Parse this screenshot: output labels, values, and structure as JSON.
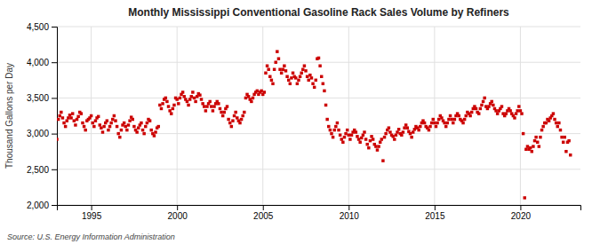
{
  "chart_data": {
    "type": "scatter",
    "title": "Monthly Mississippi Conventional Gasoline Rack Sales Volume by Refiners",
    "ylabel": "Thousand Gallons per Day",
    "source": "Source: U.S. Energy Information Administration",
    "color": "#cc0000",
    "marker": "square",
    "grid": true,
    "xlim": [
      1993.0,
      2023.5
    ],
    "ylim": [
      2000,
      4500
    ],
    "xticks": [
      1995,
      2000,
      2005,
      2010,
      2015,
      2020
    ],
    "yticks": [
      {
        "value": 2000,
        "label": "2,000"
      },
      {
        "value": 2500,
        "label": "2,500"
      },
      {
        "value": 3000,
        "label": "3,000"
      },
      {
        "value": 3500,
        "label": "3,500"
      },
      {
        "value": 4000,
        "label": "4,000"
      },
      {
        "value": 4500,
        "label": "4,500"
      }
    ],
    "x": [
      1993,
      1993.0833333333333,
      1993.1666666666667,
      1993.25,
      1993.3333333333333,
      1993.4166666666667,
      1993.5,
      1993.5833333333333,
      1993.6666666666667,
      1993.75,
      1993.8333333333333,
      1993.9166666666667,
      1994,
      1994.0833333333333,
      1994.1666666666667,
      1994.25,
      1994.3333333333333,
      1994.4166666666667,
      1994.5,
      1994.5833333333333,
      1994.6666666666667,
      1994.75,
      1994.8333333333333,
      1994.9166666666667,
      1995,
      1995.0833333333333,
      1995.1666666666667,
      1995.25,
      1995.3333333333333,
      1995.4166666666667,
      1995.5,
      1995.5833333333333,
      1995.6666666666667,
      1995.75,
      1995.8333333333333,
      1995.9166666666667,
      1996,
      1996.0833333333333,
      1996.1666666666667,
      1996.25,
      1996.3333333333333,
      1996.4166666666667,
      1996.5,
      1996.5833333333333,
      1996.6666666666667,
      1996.75,
      1996.8333333333333,
      1996.9166666666667,
      1997,
      1997.0833333333333,
      1997.1666666666667,
      1997.25,
      1997.3333333333333,
      1997.4166666666667,
      1997.5,
      1997.5833333333333,
      1997.6666666666667,
      1997.75,
      1997.8333333333333,
      1997.9166666666667,
      1998,
      1998.0833333333333,
      1998.1666666666667,
      1998.25,
      1998.3333333333333,
      1998.4166666666667,
      1998.5,
      1998.5833333333333,
      1998.6666666666667,
      1998.75,
      1998.8333333333333,
      1998.9166666666667,
      1999,
      1999.0833333333333,
      1999.1666666666667,
      1999.25,
      1999.3333333333333,
      1999.4166666666667,
      1999.5,
      1999.5833333333333,
      1999.6666666666667,
      1999.75,
      1999.8333333333333,
      1999.9166666666667,
      2000,
      2000.0833333333333,
      2000.1666666666667,
      2000.25,
      2000.3333333333333,
      2000.4166666666667,
      2000.5,
      2000.5833333333333,
      2000.6666666666667,
      2000.75,
      2000.8333333333333,
      2000.9166666666667,
      2001,
      2001.0833333333333,
      2001.1666666666667,
      2001.25,
      2001.3333333333333,
      2001.4166666666667,
      2001.5,
      2001.5833333333333,
      2001.6666666666667,
      2001.75,
      2001.8333333333333,
      2001.9166666666667,
      2002,
      2002.0833333333333,
      2002.1666666666667,
      2002.25,
      2002.3333333333333,
      2002.4166666666667,
      2002.5,
      2002.5833333333333,
      2002.6666666666667,
      2002.75,
      2002.8333333333333,
      2002.9166666666667,
      2003,
      2003.0833333333333,
      2003.1666666666667,
      2003.25,
      2003.3333333333333,
      2003.4166666666667,
      2003.5,
      2003.5833333333333,
      2003.6666666666667,
      2003.75,
      2003.8333333333333,
      2003.9166666666667,
      2004,
      2004.0833333333333,
      2004.1666666666667,
      2004.25,
      2004.3333333333333,
      2004.4166666666667,
      2004.5,
      2004.5833333333333,
      2004.6666666666667,
      2004.75,
      2004.8333333333333,
      2004.9166666666667,
      2005,
      2005.0833333333333,
      2005.1666666666667,
      2005.25,
      2005.3333333333333,
      2005.4166666666667,
      2005.5,
      2005.5833333333333,
      2005.6666666666667,
      2005.75,
      2005.8333333333333,
      2005.9166666666667,
      2006,
      2006.0833333333333,
      2006.1666666666667,
      2006.25,
      2006.3333333333333,
      2006.4166666666667,
      2006.5,
      2006.5833333333333,
      2006.6666666666667,
      2006.75,
      2006.8333333333333,
      2006.9166666666667,
      2007,
      2007.0833333333333,
      2007.1666666666667,
      2007.25,
      2007.3333333333333,
      2007.4166666666667,
      2007.5,
      2007.5833333333333,
      2007.6666666666667,
      2007.75,
      2007.8333333333333,
      2007.9166666666667,
      2008,
      2008.0833333333333,
      2008.1666666666667,
      2008.25,
      2008.3333333333333,
      2008.4166666666667,
      2008.5,
      2008.5833333333333,
      2008.6666666666667,
      2008.75,
      2008.8333333333333,
      2008.9166666666667,
      2009,
      2009.0833333333333,
      2009.1666666666667,
      2009.25,
      2009.3333333333333,
      2009.4166666666667,
      2009.5,
      2009.5833333333333,
      2009.6666666666667,
      2009.75,
      2009.8333333333333,
      2009.9166666666667,
      2010,
      2010.0833333333333,
      2010.1666666666667,
      2010.25,
      2010.3333333333333,
      2010.4166666666667,
      2010.5,
      2010.5833333333333,
      2010.6666666666667,
      2010.75,
      2010.8333333333333,
      2010.9166666666667,
      2011,
      2011.0833333333333,
      2011.1666666666667,
      2011.25,
      2011.3333333333333,
      2011.4166666666667,
      2011.5,
      2011.5833333333333,
      2011.6666666666667,
      2011.75,
      2011.8333333333333,
      2011.9166666666667,
      2012,
      2012.0833333333333,
      2012.1666666666667,
      2012.25,
      2012.3333333333333,
      2012.4166666666667,
      2012.5,
      2012.5833333333333,
      2012.6666666666667,
      2012.75,
      2012.8333333333333,
      2012.9166666666667,
      2013,
      2013.0833333333333,
      2013.1666666666667,
      2013.25,
      2013.3333333333333,
      2013.4166666666667,
      2013.5,
      2013.5833333333333,
      2013.6666666666667,
      2013.75,
      2013.8333333333333,
      2013.9166666666667,
      2014,
      2014.0833333333333,
      2014.1666666666667,
      2014.25,
      2014.3333333333333,
      2014.4166666666667,
      2014.5,
      2014.5833333333333,
      2014.6666666666667,
      2014.75,
      2014.8333333333333,
      2014.9166666666667,
      2015,
      2015.0833333333333,
      2015.1666666666667,
      2015.25,
      2015.3333333333333,
      2015.4166666666667,
      2015.5,
      2015.5833333333333,
      2015.6666666666667,
      2015.75,
      2015.8333333333333,
      2015.9166666666667,
      2016,
      2016.0833333333333,
      2016.1666666666667,
      2016.25,
      2016.3333333333333,
      2016.4166666666667,
      2016.5,
      2016.5833333333333,
      2016.6666666666667,
      2016.75,
      2016.8333333333333,
      2016.9166666666667,
      2017,
      2017.0833333333333,
      2017.1666666666667,
      2017.25,
      2017.3333333333333,
      2017.4166666666667,
      2017.5,
      2017.5833333333333,
      2017.6666666666667,
      2017.75,
      2017.8333333333333,
      2017.9166666666667,
      2018,
      2018.0833333333333,
      2018.1666666666667,
      2018.25,
      2018.3333333333333,
      2018.4166666666667,
      2018.5,
      2018.5833333333333,
      2018.6666666666667,
      2018.75,
      2018.8333333333333,
      2018.9166666666667,
      2019,
      2019.0833333333333,
      2019.1666666666667,
      2019.25,
      2019.3333333333333,
      2019.4166666666667,
      2019.5,
      2019.5833333333333,
      2019.6666666666667,
      2019.75,
      2019.8333333333333,
      2019.9166666666667,
      2020,
      2020.0833333333333,
      2020.1666666666667,
      2020.25,
      2020.3333333333333,
      2020.4166666666667,
      2020.5,
      2020.5833333333333,
      2020.6666666666667,
      2020.75,
      2020.8333333333333,
      2020.9166666666667,
      2021,
      2021.0833333333333,
      2021.1666666666667,
      2021.25,
      2021.3333333333333,
      2021.4166666666667,
      2021.5,
      2021.5833333333333,
      2021.6666666666667,
      2021.75,
      2021.8333333333333,
      2021.9166666666667,
      2022,
      2022.0833333333333,
      2022.1666666666667,
      2022.25,
      2022.3333333333333,
      2022.4166666666667,
      2022.5,
      2022.5833333333333,
      2022.6666666666667,
      2022.75,
      2022.8333333333333,
      2022.9166666666667
    ],
    "values": [
      2920,
      3200,
      3250,
      3300,
      3220,
      3150,
      3100,
      3180,
      3220,
      3260,
      3220,
      3280,
      3180,
      3120,
      3200,
      3240,
      3300,
      3280,
      3150,
      3100,
      3050,
      3180,
      3200,
      3220,
      3250,
      3150,
      3100,
      3180,
      3220,
      3240,
      3120,
      3080,
      3020,
      3100,
      3150,
      3180,
      3050,
      3100,
      3150,
      3200,
      3250,
      3180,
      3100,
      3000,
      2950,
      3050,
      3120,
      3150,
      3100,
      3050,
      3120,
      3180,
      3230,
      3200,
      3100,
      3050,
      3020,
      3080,
      3120,
      3150,
      3050,
      3000,
      3100,
      3150,
      3200,
      3180,
      3050,
      3000,
      2970,
      3020,
      3080,
      3100,
      3400,
      3350,
      3420,
      3480,
      3500,
      3450,
      3380,
      3320,
      3280,
      3350,
      3400,
      3500,
      3480,
      3420,
      3500,
      3550,
      3580,
      3520,
      3480,
      3450,
      3400,
      3480,
      3520,
      3580,
      3500,
      3450,
      3520,
      3560,
      3540,
      3480,
      3420,
      3380,
      3320,
      3380,
      3420,
      3450,
      3380,
      3320,
      3380,
      3420,
      3450,
      3420,
      3350,
      3300,
      3250,
      3300,
      3350,
      3380,
      3200,
      3150,
      3100,
      3180,
      3250,
      3300,
      3220,
      3180,
      3150,
      3200,
      3250,
      3300,
      3500,
      3550,
      3520,
      3480,
      3450,
      3500,
      3550,
      3580,
      3600,
      3550,
      3580,
      3600,
      3550,
      3580,
      3850,
      3950,
      3900,
      3800,
      3750,
      3700,
      3900,
      4000,
      4150,
      4050,
      3900,
      3850,
      3900,
      3950,
      3880,
      3800,
      3750,
      3700,
      3780,
      3850,
      3800,
      3780,
      3700,
      3750,
      3800,
      3850,
      3900,
      3950,
      3880,
      3800,
      3750,
      3820,
      3780,
      3700,
      3650,
      3750,
      4050,
      4060,
      3950,
      3800,
      3700,
      3600,
      3400,
      3200,
      3100,
      3050,
      3000,
      2950,
      3050,
      3100,
      3150,
      3050,
      2980,
      2920,
      2880,
      2950,
      3000,
      3050,
      2980,
      2920,
      2980,
      3020,
      3050,
      3020,
      2960,
      2920,
      2880,
      2940,
      2980,
      3020,
      2920,
      2850,
      2800,
      2900,
      2960,
      2920,
      2850,
      2820,
      2770,
      2820,
      2880,
      2920,
      2620,
      2950,
      3000,
      3050,
      3080,
      3020,
      2980,
      2960,
      2920,
      2980,
      3020,
      3060,
      3000,
      2980,
      3020,
      3080,
      3120,
      3080,
      3030,
      3000,
      2950,
      3020,
      3060,
      3100,
      3080,
      3050,
      3100,
      3150,
      3180,
      3150,
      3100,
      3080,
      3050,
      3100,
      3150,
      3200,
      3150,
      3100,
      3150,
      3200,
      3250,
      3220,
      3180,
      3150,
      3100,
      3150,
      3200,
      3250,
      3200,
      3150,
      3200,
      3250,
      3280,
      3250,
      3200,
      3180,
      3150,
      3200,
      3250,
      3300,
      3280,
      3250,
      3300,
      3350,
      3380,
      3350,
      3300,
      3280,
      3350,
      3400,
      3450,
      3500,
      3380,
      3350,
      3380,
      3420,
      3450,
      3400,
      3350,
      3320,
      3280,
      3320,
      3350,
      3380,
      3280,
      3250,
      3280,
      3320,
      3350,
      3320,
      3280,
      3250,
      3220,
      3280,
      3320,
      3380,
      3320,
      3280,
      3000,
      2100,
      2780,
      2820,
      2780,
      2800,
      2750,
      2820,
      2900,
      2950,
      2880,
      2820,
      2950,
      3050,
      3100,
      3150,
      3150,
      3200,
      3180,
      3220,
      3250,
      3280,
      3200,
      3150,
      3100,
      3150,
      3050,
      2950,
      2880,
      2950,
      2750,
      2880,
      2900,
      2700
    ]
  }
}
